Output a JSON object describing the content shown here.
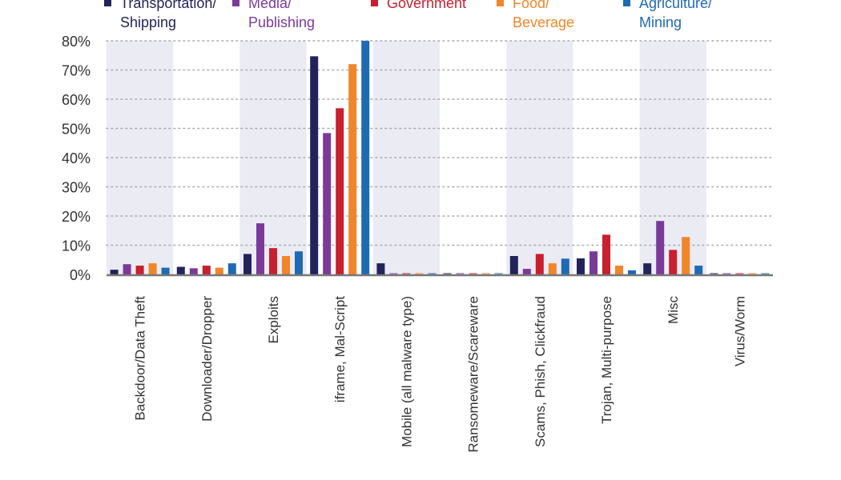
{
  "chart_data": {
    "type": "bar",
    "title": "",
    "xlabel": "",
    "ylabel": "",
    "ylim": [
      0,
      80
    ],
    "yticks": [
      "0%",
      "10%",
      "20%",
      "30%",
      "40%",
      "50%",
      "60%",
      "70%",
      "80%"
    ],
    "grid": true,
    "legend_position": "top",
    "categories": [
      "Backdoor/Data Theft",
      "Downloader/Dropper",
      "Exploits",
      "iframe, Mal-Script",
      "Mobile (all malware type)",
      "Ransomeware/Scareware",
      "Scams, Phish, Clickfraud",
      "Trojan, Multi-purpose",
      "Misc",
      "Virus/Worm"
    ],
    "series": [
      {
        "name": "Transportation/\nShipping",
        "color": "#23235b",
        "values": [
          1.6,
          2.6,
          7.0,
          74.7,
          3.8,
          0.5,
          6.3,
          5.5,
          3.8,
          0.5
        ]
      },
      {
        "name": "Media/\nPublishing",
        "color": "#7b3a9a",
        "values": [
          3.5,
          2.1,
          17.5,
          48.4,
          0.5,
          0.5,
          1.9,
          7.9,
          18.3,
          0.5
        ]
      },
      {
        "name": "Government",
        "color": "#c8202e",
        "values": [
          3.0,
          3.0,
          9.0,
          56.9,
          0.5,
          0.5,
          7.0,
          13.6,
          8.4,
          0.5
        ]
      },
      {
        "name": "Food/\nBeverage",
        "color": "#f0862a",
        "values": [
          3.8,
          2.3,
          6.3,
          72.0,
          0.5,
          0.5,
          3.8,
          3.0,
          12.8,
          0.5
        ]
      },
      {
        "name": "Agriculture/\nMining",
        "color": "#1f6ab3",
        "values": [
          2.3,
          3.8,
          7.9,
          80.0,
          0.5,
          0.5,
          5.4,
          1.4,
          3.0,
          0.5
        ]
      }
    ],
    "band_color": "#ebebf4"
  }
}
